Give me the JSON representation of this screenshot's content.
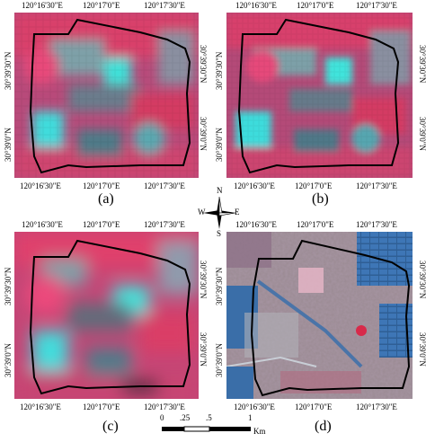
{
  "panels": [
    {
      "label": "(a)",
      "top_ticks": [
        "120°16'30\"E",
        "120°17'0\"E",
        "120°17'30\"E"
      ],
      "bottom_ticks": [
        "120°16'30\"E",
        "120°17'0\"E",
        "120°17'30\"E"
      ],
      "left_ticks": [
        "30°39'30\"N",
        "30°39'0\"N"
      ],
      "right_ticks": [
        "30°39'30\"N",
        "30°39'0\"N"
      ]
    },
    {
      "label": "(b)",
      "top_ticks": [
        "120°16'30\"E",
        "120°17'0\"E",
        "120°17'30\"E"
      ],
      "bottom_ticks": [
        "120°16'30\"E",
        "120°17'0\"E",
        "120°17'30\"E"
      ],
      "left_ticks": [
        "30°39'30\"N",
        "30°39'0\"N"
      ],
      "right_ticks": [
        "30°39'30\"N",
        "30°39'0\"N"
      ]
    },
    {
      "label": "(c)",
      "top_ticks": [
        "120°16'30\"E",
        "120°17'0\"E",
        "120°17'30\"E"
      ],
      "bottom_ticks": [
        "120°16'30\"E",
        "120°17'0\"E",
        "120°17'30\"E"
      ],
      "left_ticks": [
        "30°39'30\"N",
        "30°39'0\"N"
      ],
      "right_ticks": [
        "30°39'30\"N",
        "30°39'0\"N"
      ]
    },
    {
      "label": "(d)",
      "top_ticks": [
        "120°16'30\"E",
        "120°17'0\"E",
        "120°17'30\"E"
      ],
      "bottom_ticks": [
        "120°16'30\"E",
        "120°17'0\"E",
        "120°17'30\"E"
      ],
      "left_ticks": [
        "30°39'30\"N",
        "30°39'0\"N"
      ],
      "right_ticks": [
        "30°39'30\"N",
        "30°39'0\"N"
      ]
    }
  ],
  "north_arrow": {
    "n": "N",
    "s": "S",
    "e": "E",
    "w": "W"
  },
  "scale_bar": {
    "ticks": [
      "0",
      ".25",
      ".5",
      "1"
    ],
    "unit": "Km"
  },
  "colors": {
    "vegetation": "#e0355f",
    "water": "#2ec8c8",
    "urban": "#7a8a9a",
    "boundary": "#000000"
  }
}
